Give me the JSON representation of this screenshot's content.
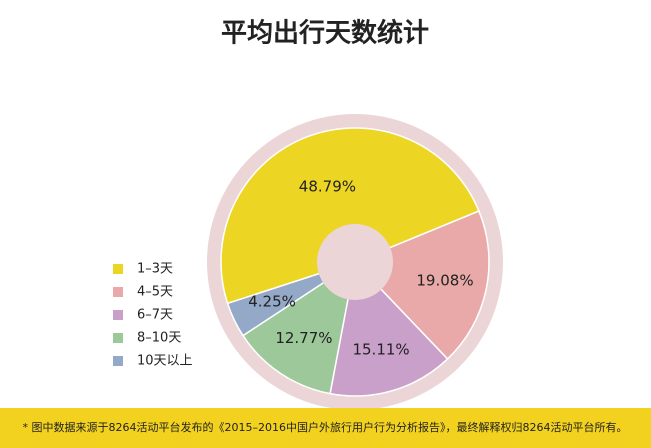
{
  "chart_data": {
    "type": "donut",
    "title": "平均出行天数统计",
    "categories": [
      "1–3天",
      "4–5天",
      "6–7天",
      "8–10天",
      "10天以上"
    ],
    "values": [
      48.79,
      19.08,
      15.11,
      12.77,
      4.25
    ],
    "value_labels": [
      "48.79%",
      "19.08%",
      "15.11%",
      "12.77%",
      "4.25%"
    ],
    "colors": [
      "#ecd523",
      "#e8a9a8",
      "#c9a0c9",
      "#9dc89a",
      "#94a8c8"
    ],
    "legend": "left",
    "note": "* 图中数据来源于8264活动平台发布的《2015–2016中国户外旅行用户行为分析报告》，最终解释权归8264活动平台所有。"
  }
}
